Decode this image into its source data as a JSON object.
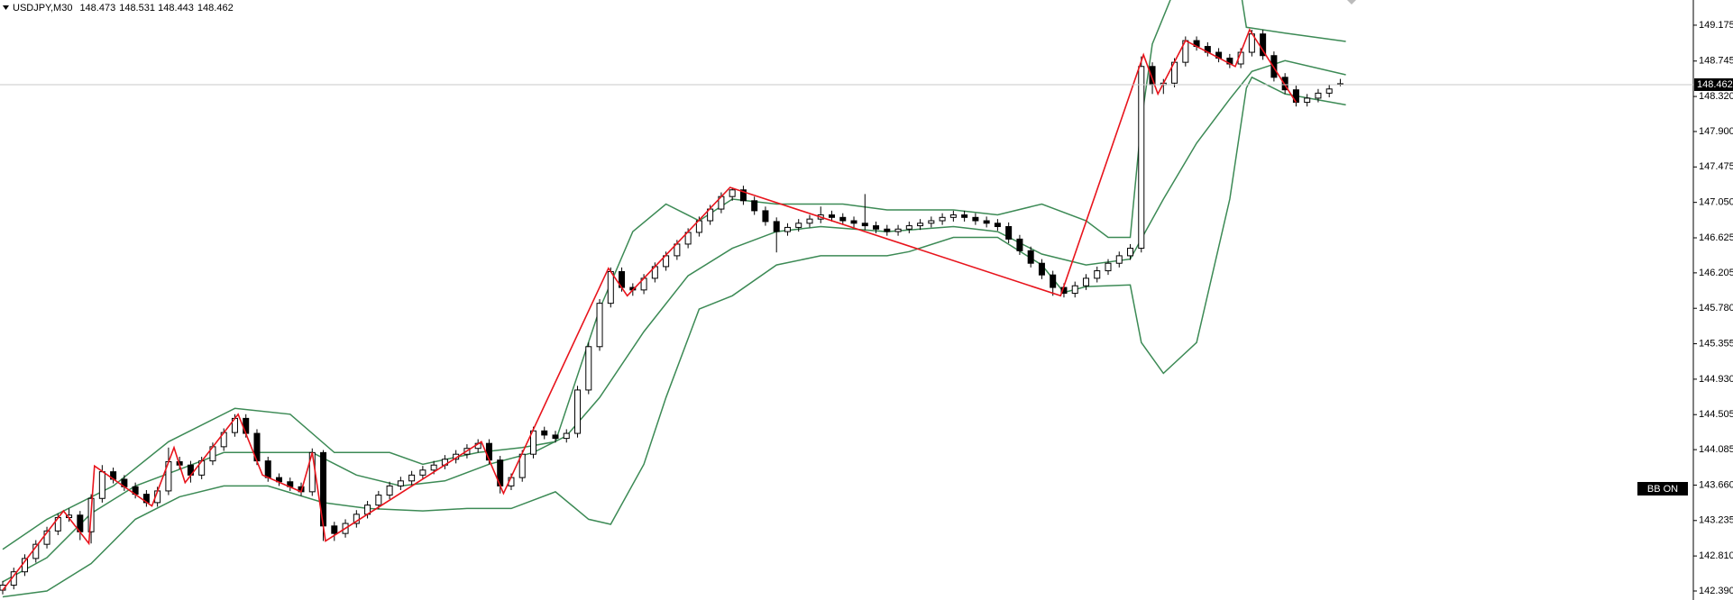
{
  "chart_data": {
    "type": "candlestick",
    "symbol": "USDJPY,M30",
    "open": [
      142.4,
      142.46,
      142.62,
      142.78,
      142.95,
      143.11,
      143.27,
      143.3,
      143.1,
      143.5,
      143.82,
      143.73,
      143.64,
      143.55,
      143.45,
      143.59,
      143.94,
      143.9,
      143.78,
      143.95,
      144.12,
      144.29,
      144.46,
      144.28,
      143.95,
      143.75,
      143.7,
      143.64,
      143.58,
      144.05,
      143.17,
      143.08,
      143.2,
      143.31,
      143.42,
      143.54,
      143.65,
      143.71,
      143.78,
      143.84,
      143.9,
      143.97,
      144.03,
      144.1,
      144.16,
      143.96,
      143.65,
      143.75,
      144.03,
      144.31,
      144.26,
      144.22,
      144.28,
      144.8,
      145.32,
      145.84,
      146.22,
      146.03,
      146.0,
      146.14,
      146.28,
      146.41,
      146.55,
      146.69,
      146.83,
      146.97,
      147.12,
      147.2,
      147.07,
      146.95,
      146.82,
      146.7,
      146.75,
      146.8,
      146.85,
      146.9,
      146.87,
      146.83,
      146.8,
      146.77,
      146.73,
      146.7,
      146.73,
      146.77,
      146.8,
      146.83,
      146.87,
      146.9,
      146.87,
      146.83,
      146.8,
      146.76,
      146.61,
      146.47,
      146.32,
      146.18,
      146.03,
      145.96,
      146.05,
      146.14,
      146.23,
      146.32,
      146.41,
      146.5,
      148.68,
      148.46,
      148.48,
      148.73,
      148.99,
      148.92,
      148.85,
      148.78,
      148.71,
      148.85,
      149.07,
      148.81,
      148.55,
      148.4,
      148.25,
      148.3,
      148.36,
      148.473
    ],
    "high": [
      142.51,
      142.67,
      142.83,
      143.0,
      143.16,
      143.32,
      143.38,
      143.35,
      143.55,
      143.9,
      143.87,
      143.78,
      143.69,
      143.6,
      143.64,
      144.11,
      144.0,
      143.95,
      144.0,
      144.17,
      144.34,
      144.51,
      144.51,
      144.33,
      144.0,
      143.8,
      143.75,
      143.69,
      144.1,
      144.08,
      143.22,
      143.25,
      143.36,
      143.47,
      143.59,
      143.7,
      143.76,
      143.83,
      143.89,
      143.95,
      144.02,
      144.08,
      144.15,
      144.21,
      144.21,
      144.01,
      143.8,
      144.08,
      144.36,
      144.36,
      144.31,
      144.33,
      144.85,
      145.37,
      145.89,
      146.27,
      146.27,
      146.08,
      146.19,
      146.33,
      146.46,
      146.6,
      146.74,
      146.88,
      147.02,
      147.17,
      147.23,
      147.25,
      147.12,
      147.0,
      146.87,
      146.8,
      146.85,
      146.9,
      147.0,
      146.95,
      146.92,
      146.88,
      147.15,
      146.82,
      146.78,
      146.78,
      146.82,
      146.85,
      146.88,
      146.92,
      146.95,
      146.95,
      146.92,
      146.88,
      146.85,
      146.81,
      146.66,
      146.52,
      146.37,
      146.23,
      146.08,
      146.1,
      146.19,
      146.28,
      146.37,
      146.46,
      146.55,
      148.8,
      148.73,
      148.53,
      148.78,
      149.04,
      149.04,
      148.97,
      148.9,
      148.83,
      148.9,
      149.12,
      149.12,
      148.86,
      148.6,
      148.45,
      148.35,
      148.41,
      148.46,
      148.531
    ],
    "low": [
      142.35,
      142.41,
      142.57,
      142.73,
      142.9,
      143.06,
      143.22,
      143.0,
      142.96,
      143.45,
      143.68,
      143.59,
      143.5,
      143.4,
      143.4,
      143.54,
      143.85,
      143.69,
      143.73,
      143.9,
      144.07,
      144.24,
      144.23,
      143.9,
      143.7,
      143.65,
      143.59,
      143.53,
      143.53,
      142.99,
      142.99,
      143.03,
      143.15,
      143.26,
      143.37,
      143.49,
      143.6,
      143.66,
      143.73,
      143.79,
      143.85,
      143.92,
      143.98,
      144.05,
      143.91,
      143.56,
      143.6,
      143.7,
      143.98,
      144.21,
      144.17,
      144.17,
      144.23,
      144.75,
      145.27,
      145.79,
      145.98,
      145.93,
      145.95,
      146.09,
      146.23,
      146.36,
      146.5,
      146.64,
      146.78,
      146.92,
      147.07,
      147.02,
      146.9,
      146.77,
      146.45,
      146.65,
      146.7,
      146.75,
      146.8,
      146.82,
      146.78,
      146.75,
      146.72,
      146.68,
      146.65,
      146.65,
      146.68,
      146.72,
      146.75,
      146.78,
      146.82,
      146.82,
      146.78,
      146.75,
      146.71,
      146.56,
      146.42,
      146.27,
      146.13,
      145.93,
      145.91,
      145.91,
      146.0,
      146.09,
      146.18,
      146.27,
      146.36,
      146.45,
      148.35,
      148.35,
      148.43,
      148.68,
      148.87,
      148.8,
      148.73,
      148.66,
      148.66,
      148.8,
      148.76,
      148.5,
      148.35,
      148.2,
      148.2,
      148.25,
      148.31,
      148.443
    ],
    "close": [
      142.46,
      142.62,
      142.78,
      142.95,
      143.11,
      143.27,
      143.3,
      143.1,
      143.5,
      143.82,
      143.73,
      143.64,
      143.55,
      143.45,
      143.59,
      143.94,
      143.9,
      143.78,
      143.95,
      144.12,
      144.29,
      144.46,
      144.28,
      143.95,
      143.75,
      143.7,
      143.64,
      143.58,
      144.05,
      143.17,
      143.08,
      143.2,
      143.31,
      143.42,
      143.54,
      143.65,
      143.71,
      143.78,
      143.84,
      143.9,
      143.97,
      144.03,
      144.1,
      144.16,
      143.96,
      143.65,
      143.75,
      144.03,
      144.31,
      144.26,
      144.22,
      144.28,
      144.8,
      145.32,
      145.84,
      146.22,
      146.03,
      146.0,
      146.14,
      146.28,
      146.41,
      146.55,
      146.69,
      146.83,
      146.97,
      147.12,
      147.2,
      147.07,
      146.95,
      146.82,
      146.7,
      146.75,
      146.8,
      146.85,
      146.9,
      146.87,
      146.83,
      146.8,
      146.77,
      146.73,
      146.7,
      146.73,
      146.77,
      146.8,
      146.83,
      146.87,
      146.9,
      146.87,
      146.83,
      146.8,
      146.76,
      146.61,
      146.47,
      146.32,
      146.18,
      146.03,
      145.96,
      146.05,
      146.14,
      146.23,
      146.32,
      146.41,
      146.5,
      148.68,
      148.46,
      148.48,
      148.73,
      148.99,
      148.92,
      148.85,
      148.78,
      148.71,
      148.85,
      149.07,
      148.81,
      148.55,
      148.4,
      148.25,
      148.3,
      148.36,
      148.41,
      148.462
    ],
    "bands": [
      {
        "color": "#3c8a55",
        "x": [
          0,
          4,
          10,
          15,
          21,
          26,
          30,
          35,
          38,
          43,
          47,
          50,
          54,
          57,
          60,
          63,
          66,
          70,
          76,
          80,
          86,
          90,
          94,
          98,
          100,
          102,
          103,
          104,
          106,
          108,
          110,
          111.5,
          112.5,
          116,
          121.5
        ],
        "values": [
          142.89,
          143.25,
          143.65,
          144.18,
          144.58,
          144.51,
          144.05,
          144.05,
          143.91,
          144.05,
          144.11,
          144.18,
          145.77,
          146.7,
          147.03,
          146.83,
          147.09,
          147.03,
          147.03,
          146.96,
          146.96,
          146.9,
          147.03,
          146.83,
          146.63,
          146.63,
          148.02,
          148.95,
          149.6,
          150.2,
          150.5,
          150.0,
          149.15,
          149.08,
          148.98
        ]
      },
      {
        "color": "#3c8a55",
        "x": [
          0,
          4,
          8,
          12,
          16,
          20,
          24,
          28,
          32,
          36,
          40,
          44,
          48,
          51,
          54,
          58,
          62,
          66,
          70,
          74,
          80,
          86,
          90,
          94,
          98,
          102,
          105,
          108,
          111,
          113,
          116,
          121.5
        ],
        "values": [
          142.5,
          142.79,
          143.32,
          143.65,
          143.85,
          144.05,
          144.05,
          144.05,
          143.78,
          143.65,
          143.71,
          143.91,
          144.05,
          144.25,
          144.71,
          145.5,
          146.17,
          146.5,
          146.7,
          146.76,
          146.7,
          146.76,
          146.7,
          146.43,
          146.3,
          146.37,
          147.09,
          147.76,
          148.29,
          148.62,
          148.75,
          148.58
        ]
      },
      {
        "color": "#3c8a55",
        "x": [
          0,
          4,
          8,
          12,
          16,
          20,
          24,
          29,
          33,
          38,
          42,
          46,
          50,
          53,
          55,
          58,
          60,
          63,
          66,
          70,
          74,
          80,
          82,
          86,
          90,
          94,
          96,
          98,
          102,
          103,
          105,
          108,
          111,
          112.5,
          113,
          116,
          121.5
        ],
        "values": [
          142.32,
          142.39,
          142.72,
          143.25,
          143.52,
          143.65,
          143.65,
          143.45,
          143.38,
          143.35,
          143.38,
          143.38,
          143.58,
          143.25,
          143.19,
          143.91,
          144.71,
          145.77,
          145.93,
          146.3,
          146.41,
          146.41,
          146.46,
          146.63,
          146.63,
          146.3,
          145.97,
          146.04,
          146.06,
          145.37,
          145.0,
          145.37,
          147.09,
          148.42,
          148.55,
          148.35,
          148.22
        ]
      }
    ],
    "zigzag": {
      "color": "#e8141c",
      "x": [
        0,
        5.5,
        7.8,
        8.3,
        13.5,
        15.5,
        16.5,
        21.3,
        23.5,
        27,
        28,
        29.2,
        43.3,
        45.3,
        54.8,
        56.5,
        65.8,
        95.7,
        103.2,
        104.5,
        107,
        111.5,
        112.8,
        117
      ],
      "values": [
        142.4,
        143.35,
        142.96,
        143.89,
        143.41,
        144.11,
        143.69,
        144.51,
        143.78,
        143.58,
        144.05,
        142.99,
        144.18,
        143.56,
        146.26,
        145.93,
        147.23,
        145.93,
        148.82,
        148.35,
        148.99,
        148.68,
        149.12,
        148.25
      ]
    },
    "ylim": [
      142.282,
      149.477
    ],
    "yticks": [
      149.175,
      148.745,
      {
        "value": 148.32,
        "label": "148.320"
      },
      {
        "value": 147.9,
        "label": "147.900"
      },
      147.475,
      {
        "value": 147.05,
        "label": "147.050"
      },
      146.625,
      146.205,
      {
        "value": 145.78,
        "label": "145.780"
      },
      145.355,
      {
        "value": 144.93,
        "label": "144.930"
      },
      144.505,
      144.085,
      {
        "value": 143.66,
        "label": "143.660"
      },
      143.235,
      {
        "value": 142.81,
        "label": "142.810"
      },
      {
        "value": 142.39,
        "label": "142.390"
      }
    ],
    "annotation": "BB ON"
  }
}
